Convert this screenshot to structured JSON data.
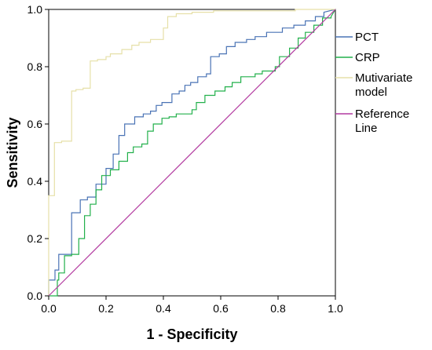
{
  "chart_data": {
    "type": "line",
    "title": "",
    "xlabel": "1 - Specificity",
    "ylabel": "Sensitivity",
    "xlim": [
      0.0,
      1.0
    ],
    "ylim": [
      0.0,
      1.0
    ],
    "xticks": [
      "0.0",
      "0.2",
      "0.4",
      "0.6",
      "0.8",
      "1.0"
    ],
    "yticks": [
      "0.0",
      "0.2",
      "0.4",
      "0.6",
      "0.8",
      "1.0"
    ],
    "grid": false,
    "legend_position": "right",
    "series": [
      {
        "name": "PCT",
        "color": "#4a73b5",
        "points": [
          [
            0,
            0
          ],
          [
            0,
            0.055
          ],
          [
            0.022,
            0.055
          ],
          [
            0.022,
            0.09
          ],
          [
            0.035,
            0.09
          ],
          [
            0.035,
            0.145
          ],
          [
            0.08,
            0.145
          ],
          [
            0.08,
            0.29
          ],
          [
            0.11,
            0.29
          ],
          [
            0.11,
            0.335
          ],
          [
            0.135,
            0.335
          ],
          [
            0.135,
            0.345
          ],
          [
            0.165,
            0.345
          ],
          [
            0.165,
            0.39
          ],
          [
            0.2,
            0.39
          ],
          [
            0.2,
            0.445
          ],
          [
            0.225,
            0.445
          ],
          [
            0.225,
            0.495
          ],
          [
            0.245,
            0.495
          ],
          [
            0.245,
            0.56
          ],
          [
            0.265,
            0.56
          ],
          [
            0.265,
            0.6
          ],
          [
            0.3,
            0.6
          ],
          [
            0.3,
            0.625
          ],
          [
            0.33,
            0.625
          ],
          [
            0.33,
            0.635
          ],
          [
            0.355,
            0.635
          ],
          [
            0.355,
            0.645
          ],
          [
            0.375,
            0.645
          ],
          [
            0.375,
            0.665
          ],
          [
            0.395,
            0.665
          ],
          [
            0.395,
            0.675
          ],
          [
            0.43,
            0.675
          ],
          [
            0.43,
            0.705
          ],
          [
            0.455,
            0.705
          ],
          [
            0.455,
            0.715
          ],
          [
            0.475,
            0.715
          ],
          [
            0.475,
            0.735
          ],
          [
            0.495,
            0.735
          ],
          [
            0.495,
            0.745
          ],
          [
            0.52,
            0.745
          ],
          [
            0.52,
            0.765
          ],
          [
            0.55,
            0.765
          ],
          [
            0.55,
            0.775
          ],
          [
            0.565,
            0.775
          ],
          [
            0.565,
            0.835
          ],
          [
            0.595,
            0.835
          ],
          [
            0.595,
            0.845
          ],
          [
            0.62,
            0.845
          ],
          [
            0.62,
            0.87
          ],
          [
            0.65,
            0.87
          ],
          [
            0.65,
            0.885
          ],
          [
            0.69,
            0.885
          ],
          [
            0.69,
            0.895
          ],
          [
            0.72,
            0.895
          ],
          [
            0.72,
            0.905
          ],
          [
            0.76,
            0.905
          ],
          [
            0.76,
            0.92
          ],
          [
            0.815,
            0.92
          ],
          [
            0.815,
            0.935
          ],
          [
            0.855,
            0.935
          ],
          [
            0.855,
            0.945
          ],
          [
            0.895,
            0.945
          ],
          [
            0.895,
            0.96
          ],
          [
            0.93,
            0.96
          ],
          [
            0.93,
            0.975
          ],
          [
            0.96,
            0.975
          ],
          [
            0.96,
            0.99
          ],
          [
            1.0,
            1.0
          ]
        ]
      },
      {
        "name": "CRP",
        "color": "#22b04b",
        "points": [
          [
            0,
            0
          ],
          [
            0.03,
            0
          ],
          [
            0.03,
            0.055
          ],
          [
            0.035,
            0.055
          ],
          [
            0.035,
            0.08
          ],
          [
            0.055,
            0.08
          ],
          [
            0.055,
            0.14
          ],
          [
            0.08,
            0.14
          ],
          [
            0.08,
            0.145
          ],
          [
            0.105,
            0.145
          ],
          [
            0.105,
            0.2
          ],
          [
            0.125,
            0.2
          ],
          [
            0.125,
            0.28
          ],
          [
            0.145,
            0.28
          ],
          [
            0.145,
            0.32
          ],
          [
            0.165,
            0.32
          ],
          [
            0.165,
            0.37
          ],
          [
            0.185,
            0.37
          ],
          [
            0.185,
            0.42
          ],
          [
            0.215,
            0.42
          ],
          [
            0.215,
            0.44
          ],
          [
            0.245,
            0.44
          ],
          [
            0.245,
            0.47
          ],
          [
            0.275,
            0.47
          ],
          [
            0.275,
            0.5
          ],
          [
            0.295,
            0.5
          ],
          [
            0.295,
            0.52
          ],
          [
            0.325,
            0.52
          ],
          [
            0.325,
            0.53
          ],
          [
            0.345,
            0.53
          ],
          [
            0.345,
            0.575
          ],
          [
            0.365,
            0.575
          ],
          [
            0.365,
            0.6
          ],
          [
            0.395,
            0.6
          ],
          [
            0.395,
            0.62
          ],
          [
            0.42,
            0.62
          ],
          [
            0.42,
            0.625
          ],
          [
            0.445,
            0.625
          ],
          [
            0.445,
            0.635
          ],
          [
            0.5,
            0.635
          ],
          [
            0.5,
            0.65
          ],
          [
            0.515,
            0.65
          ],
          [
            0.515,
            0.675
          ],
          [
            0.545,
            0.675
          ],
          [
            0.545,
            0.7
          ],
          [
            0.58,
            0.7
          ],
          [
            0.58,
            0.715
          ],
          [
            0.615,
            0.715
          ],
          [
            0.615,
            0.73
          ],
          [
            0.64,
            0.73
          ],
          [
            0.64,
            0.745
          ],
          [
            0.67,
            0.745
          ],
          [
            0.67,
            0.765
          ],
          [
            0.72,
            0.765
          ],
          [
            0.72,
            0.775
          ],
          [
            0.745,
            0.775
          ],
          [
            0.745,
            0.785
          ],
          [
            0.79,
            0.785
          ],
          [
            0.79,
            0.8
          ],
          [
            0.805,
            0.8
          ],
          [
            0.805,
            0.835
          ],
          [
            0.84,
            0.835
          ],
          [
            0.84,
            0.865
          ],
          [
            0.87,
            0.865
          ],
          [
            0.87,
            0.9
          ],
          [
            0.895,
            0.9
          ],
          [
            0.895,
            0.92
          ],
          [
            0.925,
            0.92
          ],
          [
            0.925,
            0.945
          ],
          [
            0.955,
            0.945
          ],
          [
            0.955,
            0.97
          ],
          [
            0.985,
            0.97
          ],
          [
            0.985,
            0.975
          ],
          [
            1.0,
            1.0
          ]
        ]
      },
      {
        "name": "Mutivariate model",
        "legend_lines": [
          "Mutivariate",
          "model"
        ],
        "color": "#e6e0a8",
        "points": [
          [
            0,
            0
          ],
          [
            0,
            0.35
          ],
          [
            0.02,
            0.35
          ],
          [
            0.02,
            0.535
          ],
          [
            0.045,
            0.535
          ],
          [
            0.045,
            0.54
          ],
          [
            0.08,
            0.54
          ],
          [
            0.08,
            0.715
          ],
          [
            0.095,
            0.715
          ],
          [
            0.095,
            0.72
          ],
          [
            0.12,
            0.72
          ],
          [
            0.12,
            0.725
          ],
          [
            0.145,
            0.725
          ],
          [
            0.145,
            0.82
          ],
          [
            0.17,
            0.82
          ],
          [
            0.17,
            0.825
          ],
          [
            0.2,
            0.825
          ],
          [
            0.2,
            0.835
          ],
          [
            0.215,
            0.835
          ],
          [
            0.215,
            0.845
          ],
          [
            0.255,
            0.845
          ],
          [
            0.255,
            0.86
          ],
          [
            0.29,
            0.86
          ],
          [
            0.29,
            0.875
          ],
          [
            0.315,
            0.875
          ],
          [
            0.315,
            0.885
          ],
          [
            0.355,
            0.885
          ],
          [
            0.355,
            0.895
          ],
          [
            0.4,
            0.895
          ],
          [
            0.4,
            0.935
          ],
          [
            0.415,
            0.935
          ],
          [
            0.415,
            0.975
          ],
          [
            0.445,
            0.975
          ],
          [
            0.445,
            0.985
          ],
          [
            0.5,
            0.985
          ],
          [
            0.5,
            0.99
          ],
          [
            0.575,
            0.99
          ],
          [
            0.575,
            0.995
          ],
          [
            0.86,
            0.995
          ],
          [
            0.86,
            1.0
          ],
          [
            1.0,
            1.0
          ]
        ]
      },
      {
        "name": "Reference Line",
        "legend_lines": [
          "Reference",
          "Line"
        ],
        "color": "#b23aa0",
        "points": [
          [
            0,
            0
          ],
          [
            1,
            1
          ]
        ]
      }
    ]
  }
}
